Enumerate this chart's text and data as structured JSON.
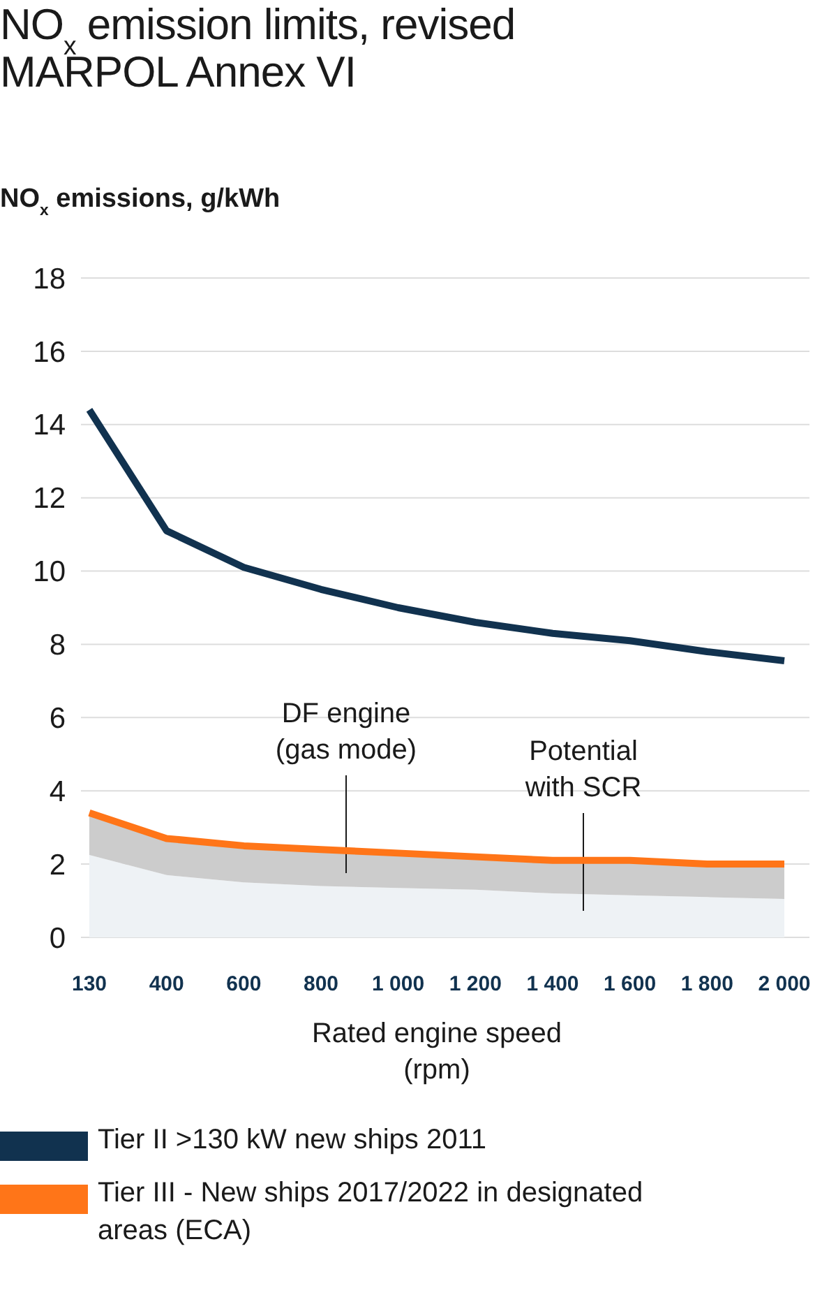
{
  "chart_data": {
    "type": "line",
    "title": "NO$_{x}$ emission limits, revised MARPOL Annex VI",
    "ylabel": "NO$_{x}$ emissions, g/kWh",
    "xlabel": "Rated engine speed (rpm)",
    "categories": [
      "130",
      "400",
      "600",
      "800",
      "1 000",
      "1 200",
      "1 400",
      "1 600",
      "1 800",
      "2 000"
    ],
    "ylim": [
      0,
      18
    ],
    "yticks": [
      0,
      2,
      4,
      6,
      8,
      10,
      12,
      14,
      16,
      18
    ],
    "grid": "y",
    "legend": "bottom",
    "series": [
      {
        "type": "area",
        "color": "#eef2f5",
        "values": [
          2.25,
          1.7,
          1.5,
          1.4,
          1.35,
          1.3,
          1.2,
          1.15,
          1.1,
          1.05
        ]
      },
      {
        "name": "Tier II >130 kW new ships 2011",
        "color": "#11324f",
        "values": [
          14.4,
          11.1,
          10.1,
          9.5,
          9.0,
          8.6,
          8.3,
          8.1,
          7.8,
          7.55
        ]
      },
      {
        "name": "Tier III - New ships 2017/2022 in designated areas (ECA)",
        "color": "#ff7518",
        "values": [
          3.4,
          2.7,
          2.5,
          2.4,
          2.3,
          2.2,
          2.1,
          2.1,
          2.0,
          2.0
        ],
        "lower": [
          2.25,
          1.7,
          1.5,
          1.4,
          1.35,
          1.3,
          1.2,
          1.15,
          1.1,
          1.05
        ],
        "upper": [
          3.4,
          2.7,
          2.5,
          2.4,
          2.3,
          2.2,
          2.1,
          2.1,
          2.0,
          2.0
        ]
      }
    ],
    "annotations": [
      "DF engine (gas mode)",
      "Potential with SCR"
    ]
  }
}
